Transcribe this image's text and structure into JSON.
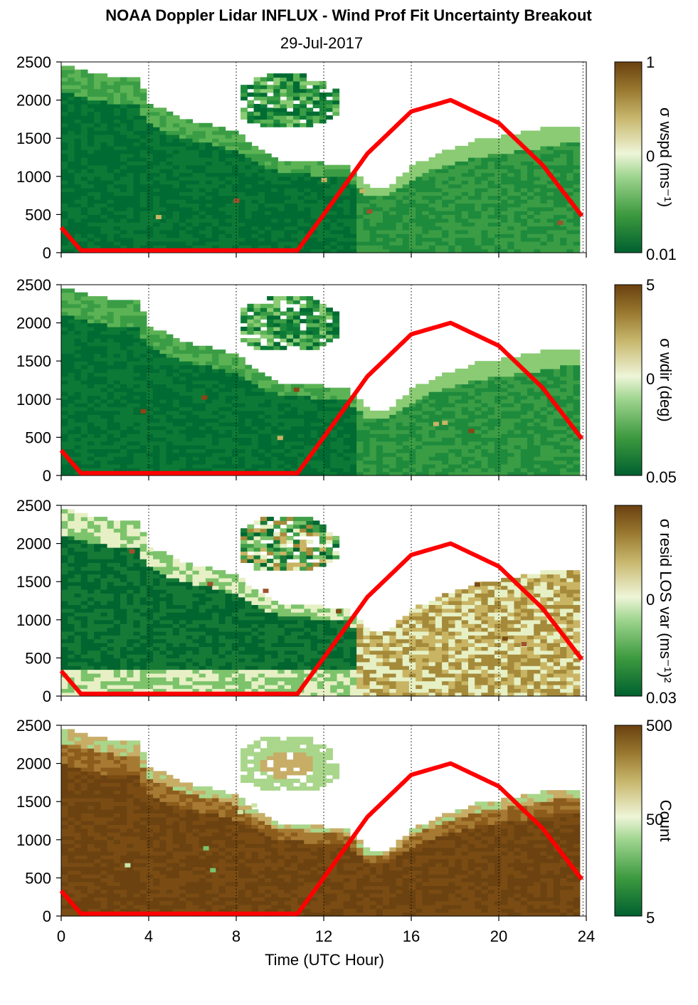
{
  "figure": {
    "title": "NOAA Doppler Lidar INFLUX - Wind Prof Fit Uncertainty Breakout",
    "subtitle": "29-Jul-2017",
    "xlabel": "Time (UTC Hour)"
  },
  "chart_data": [
    {
      "type": "heatmap",
      "panel": 1,
      "xlim": [
        0,
        24
      ],
      "ylim": [
        0,
        2500
      ],
      "xticks": [
        0,
        4,
        8,
        12,
        16,
        20,
        24
      ],
      "yticks": [
        0,
        500,
        1000,
        1500,
        2000,
        2500
      ],
      "grid": "dotted vertical at 4-hour intervals",
      "colorbar": {
        "label": "σ wspd (ms⁻¹)",
        "tick_labels": [
          "1",
          "0",
          "0.01"
        ],
        "scale": "log"
      },
      "cloud_top": {
        "x": [
          0,
          2,
          3.5,
          4,
          5,
          6,
          7,
          8,
          9,
          10,
          11,
          12,
          13,
          14,
          15,
          16,
          17,
          18,
          19,
          20,
          21,
          22,
          23,
          23.7
        ],
        "y": [
          2450,
          2300,
          2250,
          1950,
          1800,
          1700,
          1650,
          1550,
          1350,
          1200,
          1200,
          1150,
          1150,
          850,
          850,
          1100,
          1250,
          1350,
          1450,
          1500,
          1550,
          1600,
          1650,
          1650
        ]
      },
      "overlay_line": {
        "color": "#ff0000",
        "x": [
          0,
          0.9,
          10.8,
          12,
          14,
          16,
          17.8,
          20,
          22,
          23.8
        ],
        "y": [
          330,
          30,
          30,
          500,
          1300,
          1850,
          2000,
          1700,
          1150,
          480
        ]
      }
    },
    {
      "type": "heatmap",
      "panel": 2,
      "xlim": [
        0,
        24
      ],
      "ylim": [
        0,
        2500
      ],
      "xticks": [
        0,
        4,
        8,
        12,
        16,
        20,
        24
      ],
      "yticks": [
        0,
        500,
        1000,
        1500,
        2000,
        2500
      ],
      "grid": "dotted vertical at 4-hour intervals",
      "colorbar": {
        "label": "σ wdir (deg)",
        "tick_labels": [
          "5",
          "0",
          "0.05"
        ],
        "scale": "log"
      },
      "cloud_top": {
        "x": [
          0,
          2,
          3.5,
          4,
          5,
          6,
          7,
          8,
          9,
          10,
          11,
          12,
          13,
          14,
          15,
          16,
          17,
          18,
          19,
          20,
          21,
          22,
          23,
          23.7
        ],
        "y": [
          2450,
          2300,
          2250,
          1950,
          1800,
          1700,
          1650,
          1550,
          1350,
          1200,
          1200,
          1150,
          1150,
          850,
          850,
          1100,
          1250,
          1350,
          1450,
          1500,
          1550,
          1600,
          1650,
          1650
        ]
      },
      "overlay_line": {
        "color": "#ff0000",
        "x": [
          0,
          0.9,
          10.8,
          12,
          14,
          16,
          17.8,
          20,
          22,
          23.8
        ],
        "y": [
          330,
          30,
          30,
          500,
          1300,
          1850,
          2000,
          1700,
          1150,
          480
        ]
      }
    },
    {
      "type": "heatmap",
      "panel": 3,
      "xlim": [
        0,
        24
      ],
      "ylim": [
        0,
        2500
      ],
      "xticks": [
        0,
        4,
        8,
        12,
        16,
        20,
        24
      ],
      "yticks": [
        0,
        500,
        1000,
        1500,
        2000,
        2500
      ],
      "grid": "dotted vertical at 4-hour intervals",
      "colorbar": {
        "label": "σ resid LOS var (ms⁻¹)²",
        "tick_labels": [
          "0",
          "0.03"
        ],
        "scale": "log"
      },
      "cloud_top": {
        "x": [
          0,
          2,
          3.5,
          4,
          5,
          6,
          7,
          8,
          9,
          10,
          11,
          12,
          13,
          14,
          15,
          16,
          17,
          18,
          19,
          20,
          21,
          22,
          23,
          23.7
        ],
        "y": [
          2450,
          2300,
          2250,
          1950,
          1800,
          1700,
          1650,
          1550,
          1350,
          1200,
          1200,
          1150,
          1150,
          850,
          850,
          1100,
          1250,
          1350,
          1450,
          1500,
          1550,
          1600,
          1650,
          1650
        ]
      },
      "overlay_line": {
        "color": "#ff0000",
        "x": [
          0,
          0.9,
          10.8,
          12,
          14,
          16,
          17.8,
          20,
          22,
          23.8
        ],
        "y": [
          330,
          30,
          30,
          500,
          1300,
          1850,
          2000,
          1700,
          1150,
          480
        ]
      }
    },
    {
      "type": "heatmap",
      "panel": 4,
      "xlim": [
        0,
        24
      ],
      "ylim": [
        0,
        2500
      ],
      "xticks": [
        0,
        4,
        8,
        12,
        16,
        20,
        24
      ],
      "yticks": [
        0,
        500,
        1000,
        1500,
        2000,
        2500
      ],
      "grid": "dotted vertical at 4-hour intervals",
      "colorbar": {
        "label": "Count",
        "tick_labels": [
          "500",
          "50",
          "5"
        ],
        "scale": "log"
      },
      "cloud_top": {
        "x": [
          0,
          2,
          3.5,
          4,
          5,
          6,
          7,
          8,
          9,
          10,
          11,
          12,
          13,
          14,
          15,
          16,
          17,
          18,
          19,
          20,
          21,
          22,
          23,
          23.7
        ],
        "y": [
          2450,
          2300,
          2250,
          1950,
          1800,
          1700,
          1650,
          1550,
          1350,
          1200,
          1200,
          1150,
          1150,
          850,
          850,
          1100,
          1250,
          1350,
          1450,
          1500,
          1550,
          1600,
          1650,
          1650
        ]
      },
      "overlay_line": {
        "color": "#ff0000",
        "x": [
          0,
          0.9,
          10.8,
          12,
          14,
          16,
          17.8,
          20,
          22,
          23.8
        ],
        "y": [
          330,
          30,
          30,
          500,
          1300,
          1850,
          2000,
          1700,
          1150,
          480
        ]
      }
    }
  ]
}
